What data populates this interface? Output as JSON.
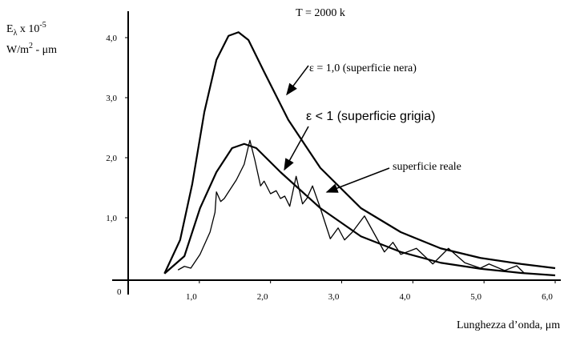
{
  "chart_data": {
    "type": "line",
    "title": "T = 2000 k",
    "ylabel": {
      "line1": [
        "E",
        "λ",
        " x 10",
        "-5"
      ],
      "line2": [
        "W/m",
        "2",
        " - μm"
      ]
    },
    "xlabel": "Lunghezza d’onda, μm",
    "origin_label": "0",
    "xlim": [
      0,
      6
    ],
    "ylim": [
      0,
      4.6
    ],
    "xticks": [
      {
        "value": 1,
        "label": "1,0"
      },
      {
        "value": 2,
        "label": "2,0"
      },
      {
        "value": 3,
        "label": "3,0"
      },
      {
        "value": 4,
        "label": "4,0"
      },
      {
        "value": 5,
        "label": "5,0"
      },
      {
        "value": 6,
        "label": "6,0"
      }
    ],
    "yticks": [
      {
        "value": 1,
        "label": "1,0"
      },
      {
        "value": 2,
        "label": "2,0"
      },
      {
        "value": 3,
        "label": "3,0"
      },
      {
        "value": 4,
        "label": "4,0"
      }
    ],
    "series": [
      {
        "name": "ε = 1,0 (superficie nera)",
        "color": "#000000",
        "x": [
          0.51,
          0.73,
          0.9,
          1.07,
          1.24,
          1.41,
          1.55,
          1.69,
          1.91,
          2.25,
          2.7,
          3.27,
          3.83,
          4.39,
          4.95,
          5.52,
          6.0
        ],
        "values": [
          0.07,
          0.63,
          1.56,
          2.76,
          3.63,
          4.03,
          4.09,
          3.96,
          3.43,
          2.63,
          1.83,
          1.16,
          0.76,
          0.49,
          0.33,
          0.23,
          0.16
        ]
      },
      {
        "name": "ε < 1 (superficie grigia)",
        "color": "#000000",
        "x": [
          0.51,
          0.79,
          1.01,
          1.24,
          1.46,
          1.63,
          1.8,
          2.14,
          2.7,
          3.27,
          3.83,
          4.39,
          4.95,
          5.52,
          6.0
        ],
        "values": [
          0.07,
          0.36,
          1.16,
          1.76,
          2.16,
          2.23,
          2.16,
          1.76,
          1.16,
          0.69,
          0.43,
          0.25,
          0.15,
          0.08,
          0.04
        ]
      },
      {
        "name": "superficie reale",
        "color": "#000000",
        "x": [
          0.7,
          0.79,
          0.88,
          1.01,
          1.15,
          1.22,
          1.24,
          1.3,
          1.35,
          1.41,
          1.52,
          1.63,
          1.71,
          1.78,
          1.86,
          1.91,
          2.0,
          2.08,
          2.14,
          2.2,
          2.27,
          2.36,
          2.45,
          2.51,
          2.59,
          2.7,
          2.84,
          2.95,
          3.04,
          3.15,
          3.32,
          3.6,
          3.72,
          3.83,
          4.05,
          4.28,
          4.5,
          4.73,
          4.95,
          5.07,
          5.29,
          5.46,
          5.57
        ],
        "values": [
          0.13,
          0.19,
          0.16,
          0.39,
          0.76,
          1.09,
          1.43,
          1.27,
          1.32,
          1.43,
          1.63,
          1.89,
          2.29,
          1.96,
          1.53,
          1.61,
          1.4,
          1.45,
          1.32,
          1.36,
          1.19,
          1.69,
          1.23,
          1.32,
          1.53,
          1.16,
          0.65,
          0.83,
          0.63,
          0.76,
          1.03,
          0.43,
          0.59,
          0.39,
          0.49,
          0.23,
          0.49,
          0.25,
          0.16,
          0.23,
          0.12,
          0.2,
          0.07
        ]
      }
    ]
  }
}
